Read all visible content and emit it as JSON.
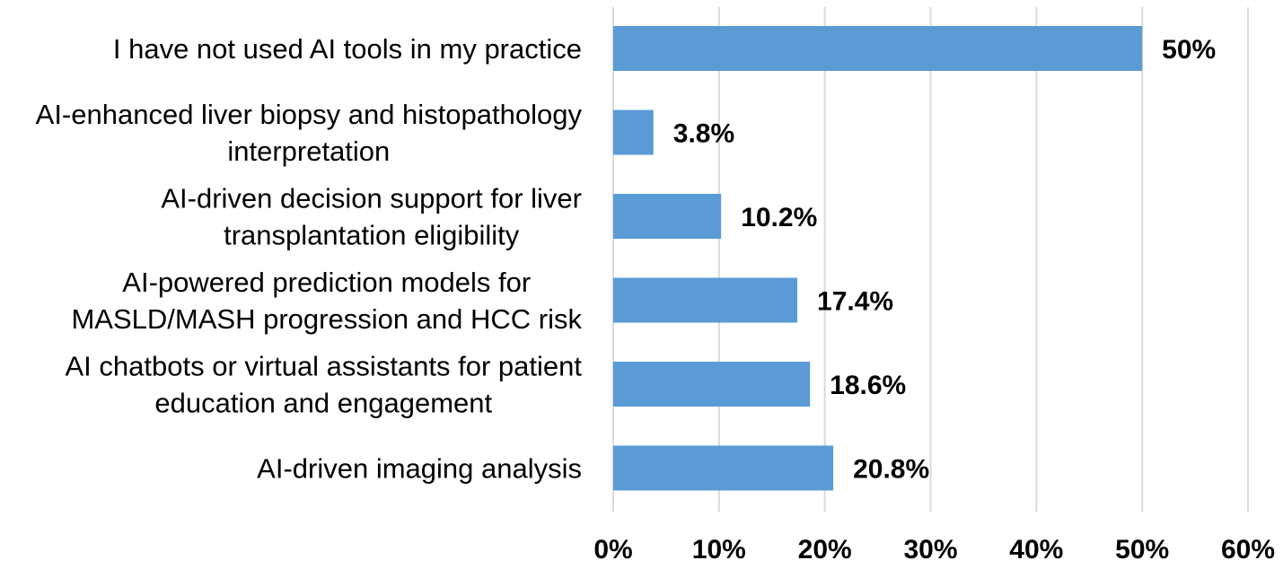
{
  "chart_data": {
    "type": "bar",
    "orientation": "horizontal",
    "categories": [
      [
        "I have not used AI tools in my practice"
      ],
      [
        "AI-enhanced liver biopsy and histopathology",
        "interpretation"
      ],
      [
        "AI-driven decision support for liver",
        "transplantation eligibility"
      ],
      [
        "AI-powered prediction models for",
        "MASLD/MASH progression and HCC risk"
      ],
      [
        "AI chatbots or virtual assistants for patient",
        "education and engagement"
      ],
      [
        "AI-driven imaging analysis"
      ]
    ],
    "values": [
      50,
      3.8,
      10.2,
      17.4,
      18.6,
      20.8
    ],
    "value_labels": [
      "50%",
      "3.8%",
      "10.2%",
      "17.4%",
      "18.6%",
      "20.8%"
    ],
    "xlim": [
      0,
      60
    ],
    "xticks": [
      0,
      10,
      20,
      30,
      40,
      50,
      60
    ],
    "xtick_labels": [
      "0%",
      "10%",
      "20%",
      "30%",
      "40%",
      "50%",
      "60%"
    ],
    "grid": true,
    "bar_color": "#5b9bd5"
  }
}
